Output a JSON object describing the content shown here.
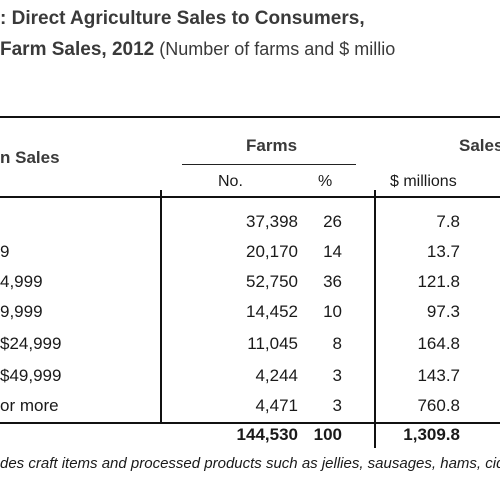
{
  "title": {
    "line1": ": Direct Agriculture Sales to Consumers,",
    "line2_bold": "Farm Sales, 2012",
    "line2_light": " (Number of farms and $ millio"
  },
  "header": {
    "sales_class": "n Sales",
    "farms": "Farms",
    "sales": "Sales",
    "no": "No.",
    "pct": "%",
    "millions": "$ millions"
  },
  "rows": [
    {
      "label": "",
      "no": "37,398",
      "pct": "26",
      "usd": "7.8"
    },
    {
      "label": "9",
      "no": "20,170",
      "pct": "14",
      "usd": "13.7"
    },
    {
      "label": "4,999",
      "no": "52,750",
      "pct": "36",
      "usd": "121.8"
    },
    {
      "label": "9,999",
      "no": "14,452",
      "pct": "10",
      "usd": "97.3"
    },
    {
      "label": "$24,999",
      "no": "11,045",
      "pct": "8",
      "usd": "164.8"
    },
    {
      "label": "$49,999",
      "no": "4,244",
      "pct": "3",
      "usd": "143.7"
    },
    {
      "label": "or more",
      "no": "4,471",
      "pct": "3",
      "usd": "760.8"
    }
  ],
  "total": {
    "label": "",
    "no": "144,530",
    "pct": "100",
    "usd": "1,309.8"
  },
  "footnote": "des craft items and processed products such as jellies, sausages, hams, cid"
}
